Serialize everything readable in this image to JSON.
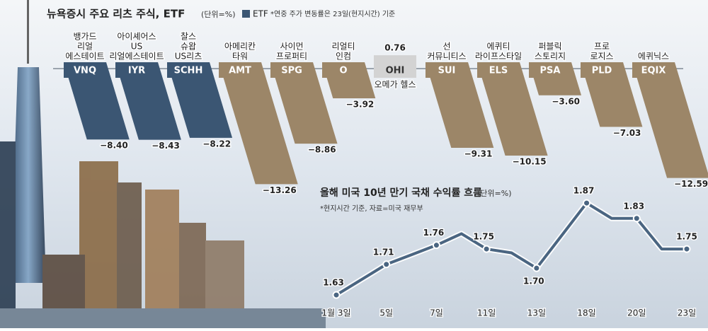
{
  "chart_data": [
    {
      "type": "bar",
      "title": "뉴욕증시 주요 리츠 주식, ETF",
      "unit": "(단위=%)",
      "note": "*연중 주가 변동률은 23일(현지시간) 기준",
      "legend": {
        "label": "ETF",
        "color": "#3b5673"
      },
      "categories": [
        "VNQ",
        "IYR",
        "SCHH",
        "AMT",
        "SPG",
        "O",
        "OHI",
        "SUI",
        "ELS",
        "PSA",
        "PLD",
        "EQIX"
      ],
      "names": [
        [
          "뱅가드",
          "리얼",
          "에스테이트"
        ],
        [
          "아이셰어스",
          "US",
          "리얼에스테이트"
        ],
        [
          "찰스",
          "슈왑",
          "US리츠"
        ],
        [
          "아메리칸",
          "타워"
        ],
        [
          "사이먼",
          "프로퍼티"
        ],
        [
          "리얼티",
          "인컴"
        ],
        [
          "오메가 헬스"
        ],
        [
          "선",
          "커뮤니티스"
        ],
        [
          "에퀴티",
          "라이프스타일"
        ],
        [
          "퍼블릭",
          "스토리지"
        ],
        [
          "프로",
          "로지스"
        ],
        [
          "에퀴닉스"
        ]
      ],
      "values": [
        -8.4,
        -8.43,
        -8.22,
        -13.26,
        -8.86,
        -3.92,
        0.76,
        -9.31,
        -10.15,
        -3.6,
        -7.03,
        -12.59
      ],
      "value_labels": [
        "−8.40",
        "−8.43",
        "−8.22",
        "−13.26",
        "−8.86",
        "−3.92",
        "0.76",
        "−9.31",
        "−10.15",
        "−3.60",
        "−7.03",
        "−12.59"
      ],
      "colors": [
        "#3b5673",
        "#3b5673",
        "#3b5673",
        "#9c8668",
        "#9c8668",
        "#9c8668",
        "#d3d3d3",
        "#9c8668",
        "#9c8668",
        "#9c8668",
        "#9c8668",
        "#9c8668"
      ],
      "ylim": [
        -14,
        1
      ]
    },
    {
      "type": "line",
      "title": "올해 미국 10년 만기 국채 수익률 흐름",
      "unit": "(단위=%)",
      "note": "*현지시간 기준, 자료=미국 재무부",
      "categories": [
        "1월 3일",
        null,
        "5일",
        null,
        "7일",
        null,
        "11일",
        null,
        "13일",
        null,
        "18일",
        null,
        "20일",
        null,
        "23일"
      ],
      "series": [
        {
          "name": null,
          "color": "#4a6581",
          "values": [
            1.63,
            1.67,
            1.71,
            1.735,
            1.76,
            1.79,
            1.75,
            1.74,
            1.7,
            1.785,
            1.87,
            1.83,
            1.83,
            1.75,
            1.75
          ],
          "value_labels": [
            "1.63",
            null,
            "1.71",
            null,
            "1.76",
            null,
            "1.75",
            null,
            "1.70",
            null,
            "1.87",
            null,
            "1.83",
            null,
            "1.75"
          ]
        }
      ],
      "ylim": [
        1.56,
        1.92
      ]
    }
  ]
}
